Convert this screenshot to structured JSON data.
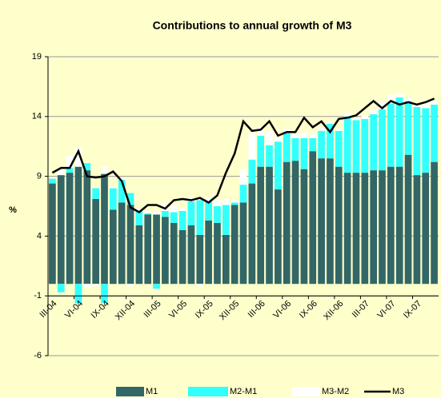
{
  "chart_data": {
    "type": "bar",
    "stacked": true,
    "title": "Contributions to annual growth of M3",
    "ylabel": "%",
    "categories": [
      "III-04",
      null,
      null,
      "VI-04",
      null,
      null,
      "IX-04",
      null,
      null,
      "XII-04",
      null,
      null,
      "III-05",
      null,
      null,
      "VI-05",
      null,
      null,
      "IX-05",
      null,
      null,
      "XII-05",
      null,
      null,
      "III-06",
      null,
      null,
      "VI-06",
      null,
      null,
      "IX-06",
      null,
      null,
      "XII-06",
      null,
      null,
      "III-07",
      null,
      null,
      "VI-07",
      null,
      null,
      "IX-07",
      null,
      null
    ],
    "series": [
      {
        "name": "M1",
        "color": "#336666",
        "values": [
          8.4,
          9.1,
          9.3,
          9.8,
          9.5,
          7.1,
          9.2,
          6.2,
          6.8,
          6.6,
          4.9,
          5.8,
          5.8,
          5.6,
          5.1,
          4.5,
          4.9,
          4.1,
          5.3,
          5.1,
          4.1,
          6.6,
          6.8,
          8.4,
          9.8,
          9.8,
          7.9,
          10.2,
          10.3,
          9.6,
          11.1,
          10.5,
          10.5,
          9.8,
          9.3,
          9.3,
          9.3,
          9.5,
          9.5,
          9.8,
          9.8,
          10.8,
          9.1,
          9.3,
          10.2
        ]
      },
      {
        "name": "M2-M1",
        "color": "#33ffff",
        "values": [
          0.4,
          -0.7,
          0.4,
          -1.6,
          0.6,
          0.9,
          -1.6,
          1.8,
          1.9,
          1.0,
          1.2,
          0.1,
          -0.4,
          0.5,
          0.9,
          1.6,
          2.0,
          2.9,
          1.6,
          1.4,
          2.5,
          0.2,
          1.5,
          2.0,
          2.6,
          1.8,
          4.0,
          2.4,
          1.9,
          2.6,
          1.1,
          2.3,
          2.9,
          3.0,
          4.7,
          4.4,
          4.5,
          4.7,
          5.1,
          5.3,
          5.8,
          4.5,
          5.7,
          5.4,
          4.8
        ]
      },
      {
        "name": "M3-M2",
        "color": "#ffffff",
        "values": [
          0.0,
          0.6,
          1.0,
          1.6,
          -0.3,
          -0.2,
          0.6,
          0.1,
          0.1,
          -0.2,
          0.2,
          0.2,
          0.3,
          0.6,
          0.6,
          0.3,
          0.3,
          -0.2,
          0.3,
          0.6,
          0.5,
          0.2,
          1.3,
          2.2,
          0.7,
          1.2,
          0.4,
          0.4,
          0.4,
          0.5,
          0.4,
          0.3,
          0.2,
          0.2,
          0.3,
          0.2,
          0.3,
          0.4,
          0.6,
          0.7,
          0.3,
          0.3,
          0.3,
          0.6,
          0.3
        ]
      },
      {
        "name": "M3",
        "color": "#000000",
        "type": "line",
        "values": [
          9.3,
          9.7,
          9.7,
          11.1,
          9.0,
          8.9,
          9.0,
          9.4,
          8.6,
          6.4,
          6.0,
          6.6,
          6.6,
          6.3,
          7.0,
          7.1,
          7.0,
          7.2,
          6.8,
          7.4,
          9.3,
          10.9,
          13.6,
          12.8,
          12.9,
          13.6,
          12.4,
          12.7,
          12.7,
          13.9,
          13.1,
          13.6,
          12.7,
          13.8,
          13.9,
          14.1,
          14.7,
          15.3,
          14.7,
          15.3,
          15.0,
          15.2,
          15.0,
          15.2,
          15.5
        ]
      }
    ],
    "ylim": [
      -6,
      19
    ],
    "yticks": [
      -6,
      -1,
      4,
      9,
      14,
      19
    ],
    "x_axis_at": -1,
    "grid": true,
    "legend": "bottom"
  }
}
